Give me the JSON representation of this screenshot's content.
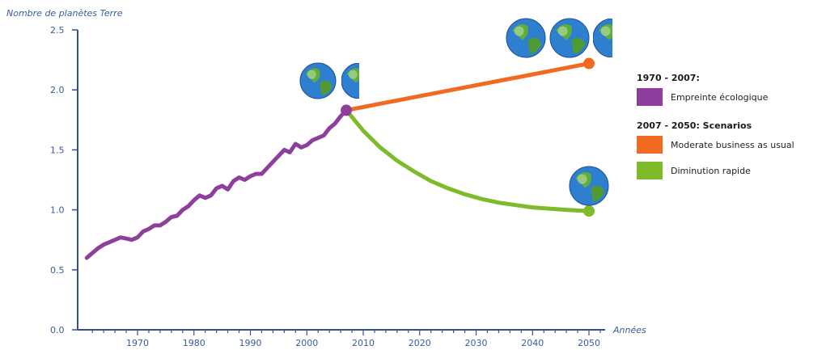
{
  "chart_data": {
    "type": "line",
    "ylabel": "Nombre de planètes Terre",
    "xlabel": "Années",
    "xlim": [
      1962,
      2053
    ],
    "ylim": [
      0,
      2.5
    ],
    "x_ticks": [
      1970,
      1980,
      1990,
      2000,
      2010,
      2020,
      2030,
      2040,
      2050
    ],
    "y_ticks": [
      "0.0",
      "0.5",
      "1.0",
      "1.5",
      "2.0",
      "2.5"
    ],
    "grid": false,
    "legend_position": "right",
    "series": [
      {
        "name": "Empreinte écologique",
        "color": "#8e3f9c",
        "x": [
          1961,
          1962,
          1963,
          1964,
          1965,
          1966,
          1967,
          1968,
          1969,
          1970,
          1971,
          1972,
          1973,
          1974,
          1975,
          1976,
          1977,
          1978,
          1979,
          1980,
          1981,
          1982,
          1983,
          1984,
          1985,
          1986,
          1987,
          1988,
          1989,
          1990,
          1991,
          1992,
          1993,
          1994,
          1995,
          1996,
          1997,
          1998,
          1999,
          2000,
          2001,
          2002,
          2003,
          2004,
          2005,
          2006,
          2007
        ],
        "y": [
          0.6,
          0.64,
          0.68,
          0.71,
          0.73,
          0.75,
          0.77,
          0.76,
          0.75,
          0.77,
          0.82,
          0.84,
          0.87,
          0.87,
          0.9,
          0.94,
          0.95,
          1.0,
          1.03,
          1.08,
          1.12,
          1.1,
          1.12,
          1.18,
          1.2,
          1.17,
          1.24,
          1.27,
          1.25,
          1.28,
          1.3,
          1.3,
          1.35,
          1.4,
          1.45,
          1.5,
          1.48,
          1.55,
          1.52,
          1.54,
          1.58,
          1.6,
          1.62,
          1.68,
          1.72,
          1.78,
          1.83
        ]
      },
      {
        "name": "Moderate business as usual",
        "color": "#f26a21",
        "x": [
          2007,
          2050
        ],
        "y": [
          1.83,
          2.22
        ]
      },
      {
        "name": "Diminution rapide",
        "color": "#7dbb2a",
        "x": [
          2007,
          2010,
          2013,
          2016,
          2019,
          2022,
          2025,
          2028,
          2031,
          2034,
          2037,
          2040,
          2043,
          2046,
          2050
        ],
        "y": [
          1.83,
          1.66,
          1.52,
          1.41,
          1.32,
          1.24,
          1.18,
          1.13,
          1.09,
          1.06,
          1.04,
          1.02,
          1.01,
          1.0,
          0.99
        ]
      }
    ]
  },
  "legend": {
    "heading1": "1970 - 2007:",
    "heading2": "2007 - 2050: Scenarios",
    "items": [
      {
        "label": "Empreinte écologique",
        "color": "#8e3f9c"
      },
      {
        "label": "Moderate business as usual",
        "color": "#f26a21"
      },
      {
        "label": "Diminution rapide",
        "color": "#7dbb2a"
      }
    ]
  }
}
